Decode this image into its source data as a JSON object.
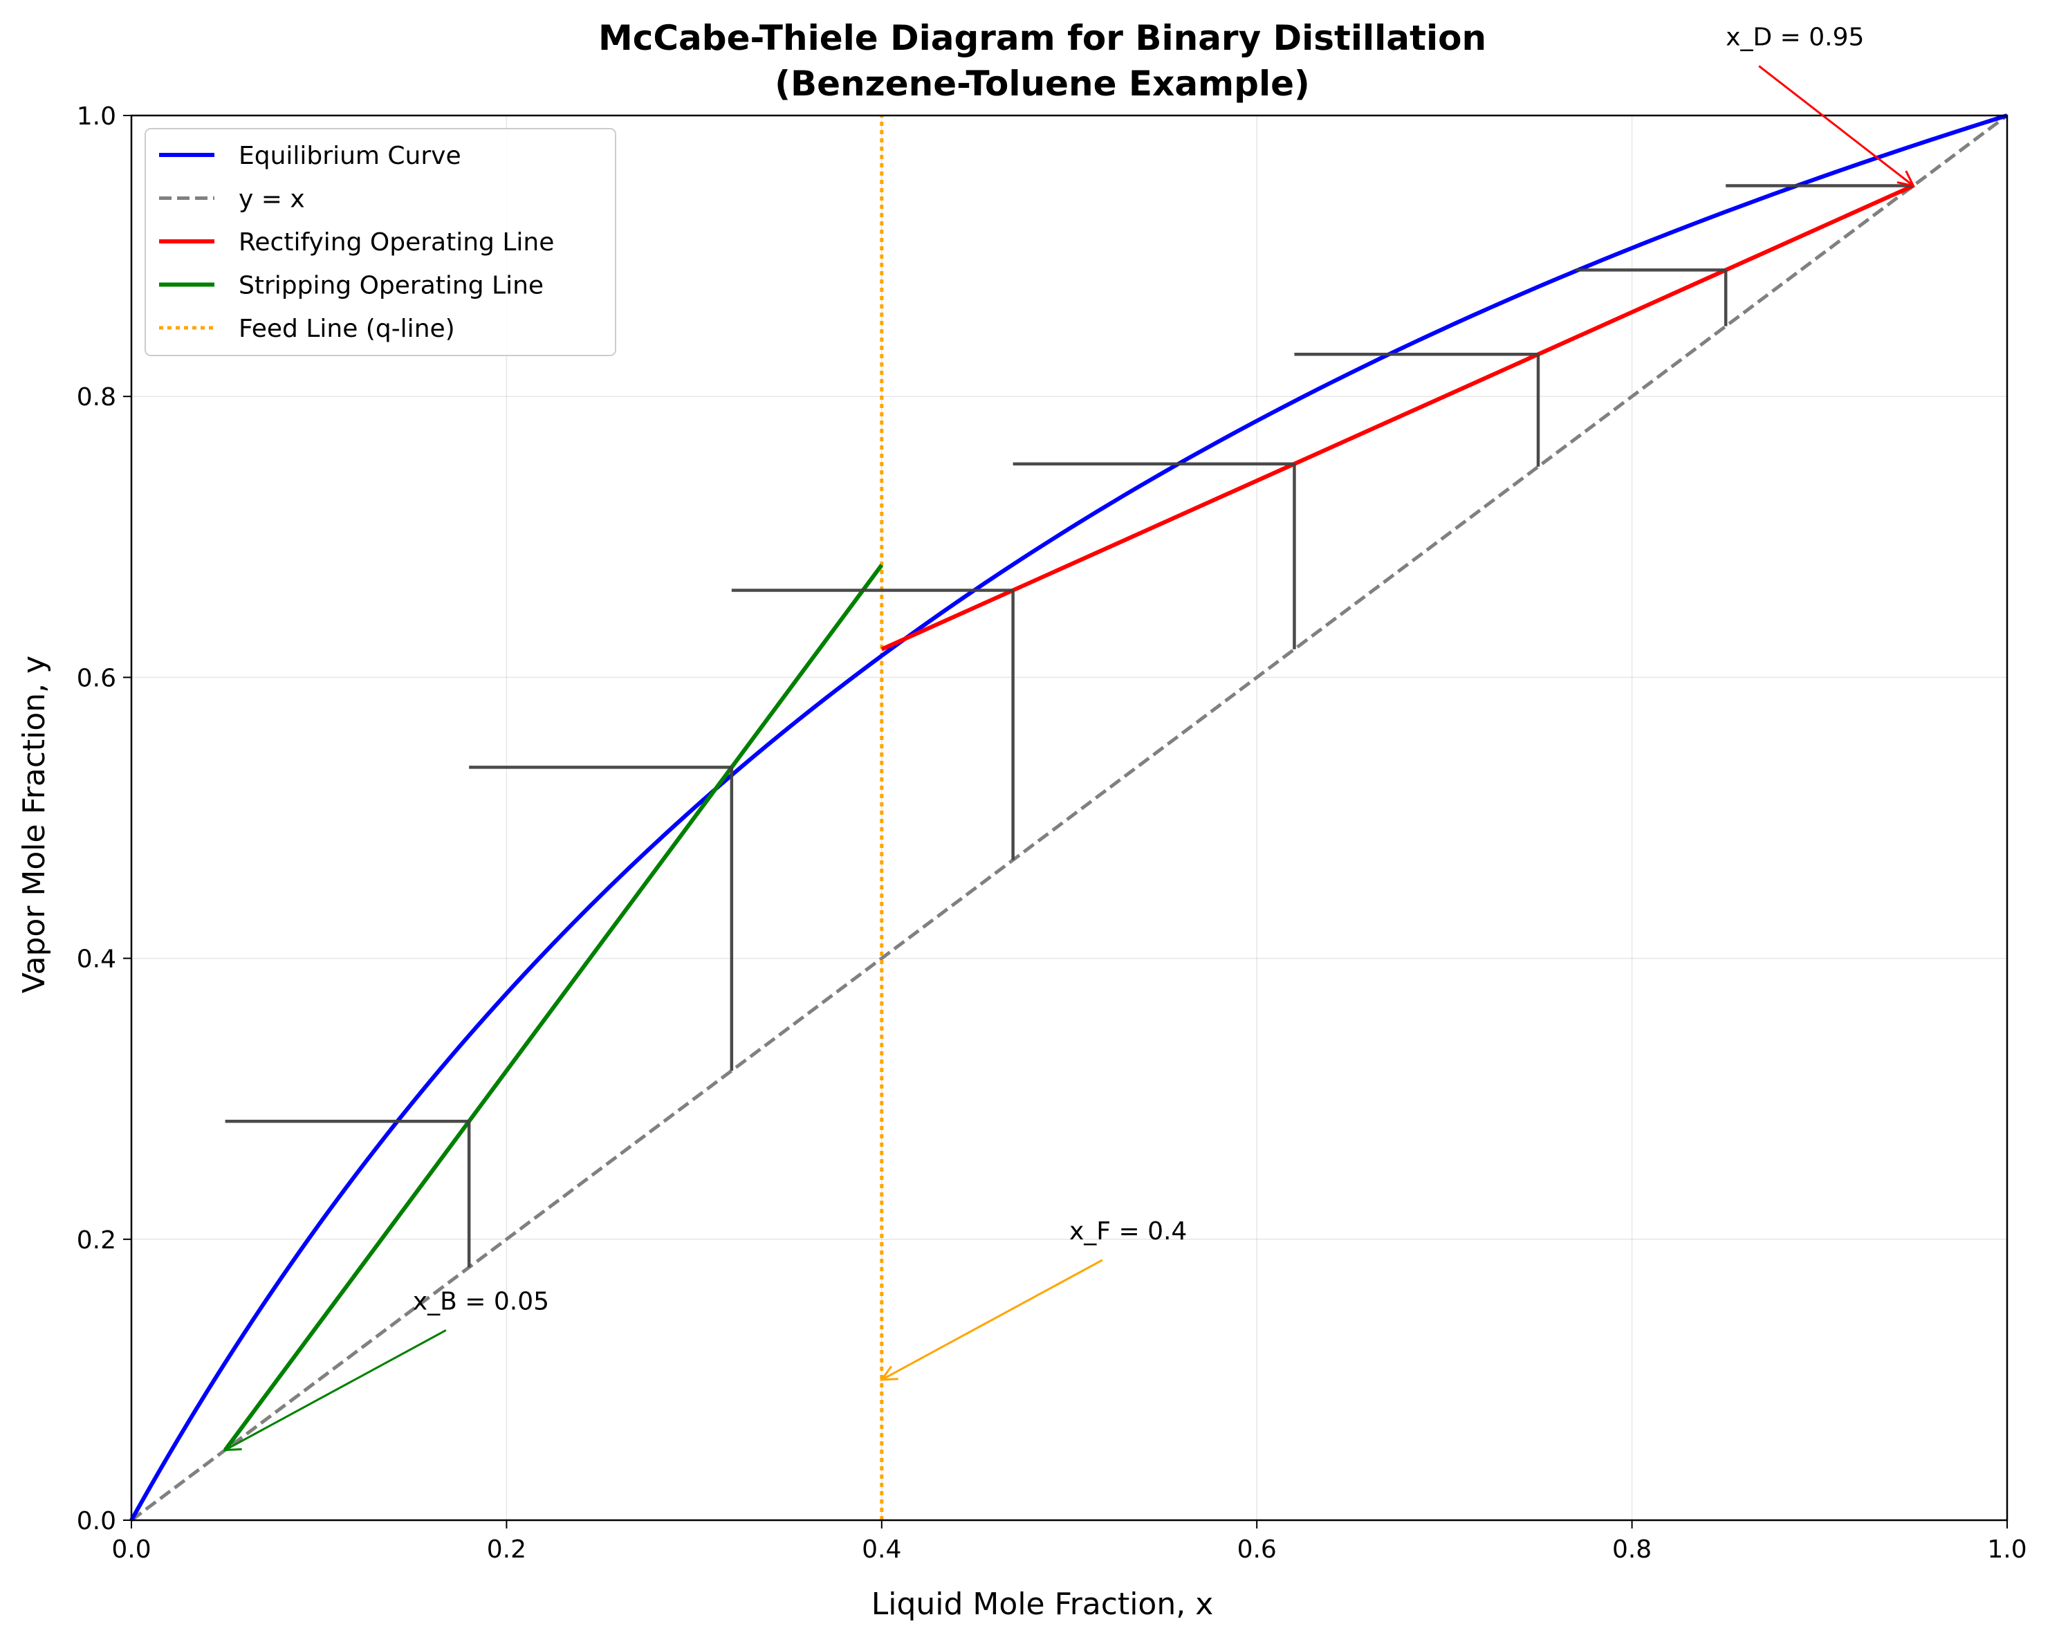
{
  "chart_data": {
    "type": "line",
    "title": [
      "McCabe-Thiele Diagram for Binary Distillation",
      "(Benzene-Toluene Example)"
    ],
    "xlabel": "Liquid Mole Fraction, x",
    "ylabel": "Vapor Mole Fraction, y",
    "xlim": [
      0,
      1
    ],
    "ylim": [
      0,
      1
    ],
    "xticks": [
      "0.0",
      "0.2",
      "0.4",
      "0.6",
      "0.8",
      "1.0"
    ],
    "yticks": [
      "0.0",
      "0.2",
      "0.4",
      "0.6",
      "0.8",
      "1.0"
    ],
    "grid": true,
    "legend_position": "upper-left",
    "relative_volatility": 2.4,
    "series": [
      {
        "name": "Equilibrium Curve",
        "color": "#0000ff",
        "style": "solid",
        "kind": "equilibrium"
      },
      {
        "name": "y = x",
        "color": "#808080",
        "style": "dashed",
        "x": [
          0,
          1
        ],
        "y": [
          0,
          1
        ]
      },
      {
        "name": "Rectifying Operating Line",
        "color": "#ff0000",
        "style": "solid",
        "x": [
          0.4,
          0.95
        ],
        "y": [
          0.62,
          0.95
        ]
      },
      {
        "name": "Stripping Operating Line",
        "color": "#008000",
        "style": "solid",
        "x": [
          0.05,
          0.4
        ],
        "y": [
          0.05,
          0.68
        ]
      },
      {
        "name": "Feed Line (q-line)",
        "color": "#ffa500",
        "style": "dotted",
        "x": [
          0.4,
          0.4
        ],
        "y": [
          0,
          1
        ]
      }
    ],
    "stages": {
      "color": "#404040",
      "horizontal": [
        {
          "x1": 0.85,
          "x2": 0.95,
          "y": 0.95
        },
        {
          "x1": 0.77,
          "x2": 0.85,
          "y": 0.89
        },
        {
          "x1": 0.62,
          "x2": 0.75,
          "y": 0.83
        },
        {
          "x1": 0.47,
          "x2": 0.62,
          "y": 0.752
        },
        {
          "x1": 0.32,
          "x2": 0.47,
          "y": 0.662
        },
        {
          "x1": 0.18,
          "x2": 0.32,
          "y": 0.536
        },
        {
          "x1": 0.05,
          "x2": 0.18,
          "y": 0.284
        }
      ],
      "vertical": [
        {
          "x": 0.85,
          "y1": 0.85,
          "y2": 0.89
        },
        {
          "x": 0.75,
          "y1": 0.75,
          "y2": 0.83
        },
        {
          "x": 0.62,
          "y1": 0.62,
          "y2": 0.752
        },
        {
          "x": 0.47,
          "y1": 0.47,
          "y2": 0.662
        },
        {
          "x": 0.32,
          "y1": 0.32,
          "y2": 0.536
        },
        {
          "x": 0.18,
          "y1": 0.18,
          "y2": 0.284
        }
      ]
    },
    "annotations": [
      {
        "text": "x_D = 0.95",
        "text_x": 0.85,
        "text_y": 1.05,
        "arrow_x": 0.95,
        "arrow_y": 0.95,
        "color": "#ff0000"
      },
      {
        "text": "x_F = 0.4",
        "text_x": 0.5,
        "text_y": 0.2,
        "arrow_x": 0.4,
        "arrow_y": 0.1,
        "color": "#ffa500"
      },
      {
        "text": "x_B = 0.05",
        "text_x": 0.15,
        "text_y": 0.15,
        "arrow_x": 0.05,
        "arrow_y": 0.05,
        "color": "#008000"
      }
    ]
  }
}
